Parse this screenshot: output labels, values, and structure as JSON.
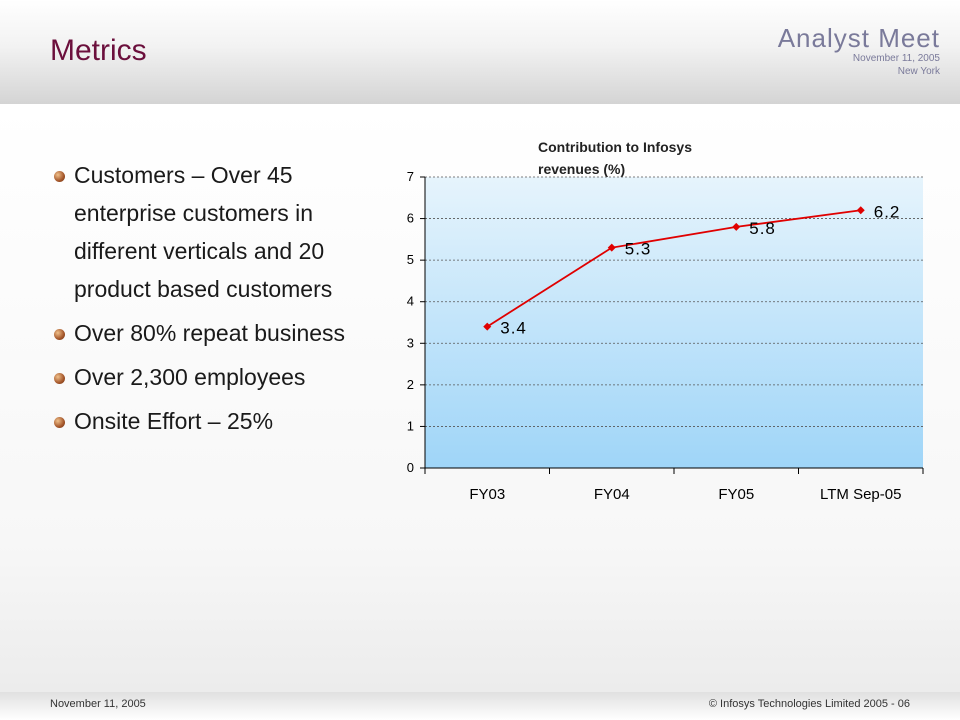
{
  "slide": {
    "title": "Metrics",
    "brand": {
      "name": "Analyst Meet",
      "date": "November 11, 2005",
      "city": "New York"
    },
    "bullets": [
      "Customers – Over 45 enterprise customers in different verticals and 20 product based customers",
      "Over 80% repeat business",
      "Over 2,300 employees",
      "Onsite Effort – 25%"
    ],
    "footer": {
      "date": "November 11, 2005",
      "copyright": "© Infosys Technologies Limited 2005 - 06"
    }
  },
  "chart_data": {
    "type": "line",
    "title_lines": [
      "Contribution to Infosys",
      "revenues (%)"
    ],
    "categories": [
      "FY03",
      "FY04",
      "FY05",
      "LTM Sep-05"
    ],
    "values": [
      3.4,
      5.3,
      5.8,
      6.2
    ],
    "value_labels": [
      "3.4",
      "5.3",
      "5.8",
      "6.2"
    ],
    "ylim": [
      0,
      7
    ],
    "yticks": [
      0,
      1,
      2,
      3,
      4,
      5,
      6,
      7
    ],
    "grid": true,
    "line_color": "#e00000",
    "plot_bg_top": "#e6f4fc",
    "plot_bg_bottom": "#9fd5f8"
  }
}
